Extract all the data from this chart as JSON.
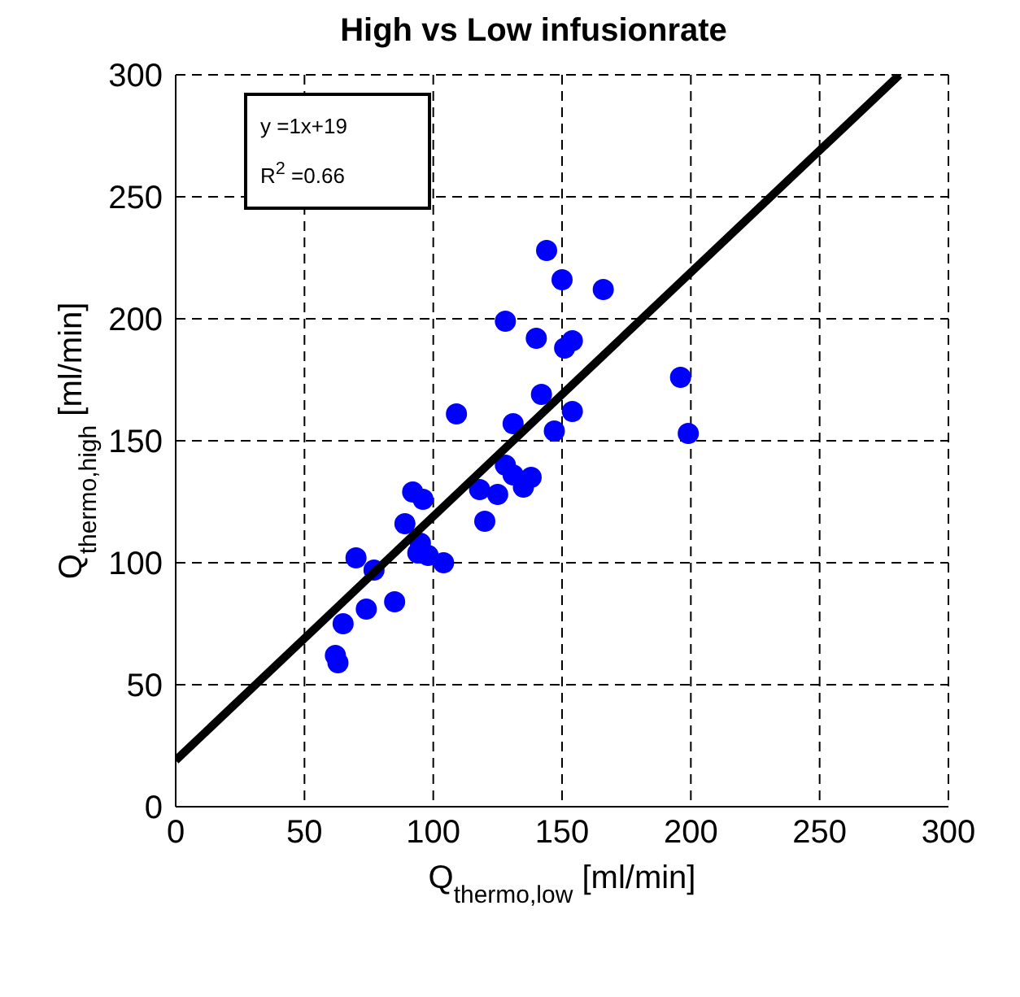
{
  "chart_data": {
    "type": "scatter",
    "title": "High vs Low infusionrate",
    "xlabel": "Q$_{thermo,low}$ [ml/min]",
    "ylabel": "Q$_{thermo,high}$ [ml/min]",
    "xlim": [
      0,
      300
    ],
    "xticks": [
      0,
      50,
      100,
      150,
      200,
      250,
      300
    ],
    "ylim": [
      0,
      300
    ],
    "yticks": [
      0,
      50,
      100,
      150,
      200,
      250,
      300
    ],
    "grid": true,
    "marker": "circle",
    "annotations": [
      "y =1x+19",
      "R$^{2}$ =0.66"
    ],
    "series": [
      {
        "color": "#0000ff",
        "x": [
          62,
          63,
          65,
          70,
          74,
          77,
          85,
          89,
          92,
          96,
          94,
          98,
          95,
          104,
          109,
          118,
          120,
          125,
          128,
          128,
          131,
          131,
          135,
          138,
          140,
          142,
          144,
          147,
          150,
          151,
          154,
          154,
          166,
          196,
          199
        ],
        "values": [
          62,
          59,
          75,
          102,
          81,
          97,
          84,
          116,
          129,
          126,
          104,
          103,
          108,
          100,
          161,
          130,
          117,
          128,
          140,
          199,
          136,
          157,
          131,
          135,
          192,
          169,
          228,
          154,
          216,
          188,
          191,
          162,
          212,
          176,
          153
        ]
      },
      {
        "type": "line",
        "color": "#000000",
        "line_style": "solid",
        "marker": "none",
        "x": [
          0,
          281
        ],
        "values": [
          19,
          300
        ]
      }
    ]
  }
}
